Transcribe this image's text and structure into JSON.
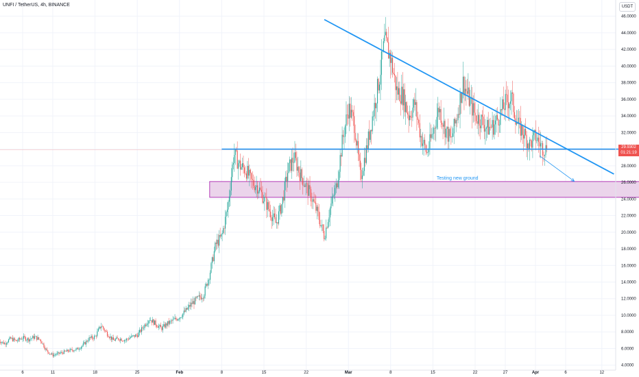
{
  "header": {
    "title": "UNFI / TetherUS, 4h, BINANCE",
    "currency": "USDT"
  },
  "price_tag": {
    "price": "29.9302",
    "countdown": "01:21:19"
  },
  "colors": {
    "up": "#26a69a",
    "down": "#ef5350",
    "trendline": "#2196f3",
    "zone_fill": "#e8cce8",
    "zone_border": "#b33bb8",
    "grid": "#f0f3fa"
  },
  "chart_data": {
    "type": "candlestick",
    "title": "UNFI / TetherUS, 4h, BINANCE",
    "ylim": [
      4,
      47
    ],
    "y_ticks": [
      "4.0000",
      "6.0000",
      "8.0000",
      "10.0000",
      "12.0000",
      "14.0000",
      "16.0000",
      "18.0000",
      "20.0000",
      "22.0000",
      "24.0000",
      "26.0000",
      "28.0000",
      "30.0000",
      "32.0000",
      "34.0000",
      "36.0000",
      "38.0000",
      "40.0000",
      "42.0000",
      "44.0000",
      "46.0000"
    ],
    "x_ticks": [
      {
        "label": "6",
        "date": "2021-01-06"
      },
      {
        "label": "11",
        "date": "2021-01-11"
      },
      {
        "label": "18",
        "date": "2021-01-18"
      },
      {
        "label": "25",
        "date": "2021-01-25"
      },
      {
        "label": "Feb",
        "date": "2021-02-01",
        "bold": true
      },
      {
        "label": "8",
        "date": "2021-02-08"
      },
      {
        "label": "15",
        "date": "2021-02-15"
      },
      {
        "label": "22",
        "date": "2021-02-22"
      },
      {
        "label": "Mar",
        "date": "2021-03-01",
        "bold": true
      },
      {
        "label": "8",
        "date": "2021-03-08"
      },
      {
        "label": "15",
        "date": "2021-03-15"
      },
      {
        "label": "22",
        "date": "2021-03-22"
      },
      {
        "label": "27",
        "date": "2021-03-27"
      },
      {
        "label": "Apr",
        "date": "2021-04-01",
        "bold": true
      },
      {
        "label": "6",
        "date": "2021-04-06"
      },
      {
        "label": "12",
        "date": "2021-04-12"
      }
    ],
    "price_path": [
      [
        "2021-01-02",
        7.0
      ],
      [
        "2021-01-03",
        6.6
      ],
      [
        "2021-01-04",
        7.2
      ],
      [
        "2021-01-05",
        6.9
      ],
      [
        "2021-01-06",
        7.3
      ],
      [
        "2021-01-07",
        7.1
      ],
      [
        "2021-01-08",
        7.4
      ],
      [
        "2021-01-09",
        7.0
      ],
      [
        "2021-01-10",
        5.7
      ],
      [
        "2021-01-11",
        5.2
      ],
      [
        "2021-01-12",
        5.4
      ],
      [
        "2021-01-13",
        5.6
      ],
      [
        "2021-01-14",
        5.8
      ],
      [
        "2021-01-15",
        5.9
      ],
      [
        "2021-01-16",
        6.4
      ],
      [
        "2021-01-17",
        7.2
      ],
      [
        "2021-01-18",
        7.4
      ],
      [
        "2021-01-19",
        8.8
      ],
      [
        "2021-01-20",
        7.8
      ],
      [
        "2021-01-21",
        7.0
      ],
      [
        "2021-01-22",
        7.2
      ],
      [
        "2021-01-23",
        7.0
      ],
      [
        "2021-01-24",
        7.4
      ],
      [
        "2021-01-25",
        7.6
      ],
      [
        "2021-01-26",
        8.6
      ],
      [
        "2021-01-27",
        9.6
      ],
      [
        "2021-01-28",
        9.0
      ],
      [
        "2021-01-29",
        8.4
      ],
      [
        "2021-01-30",
        9.0
      ],
      [
        "2021-01-31",
        9.4
      ],
      [
        "2021-02-01",
        9.8
      ],
      [
        "2021-02-02",
        10.5
      ],
      [
        "2021-02-03",
        11.4
      ],
      [
        "2021-02-04",
        12.0
      ],
      [
        "2021-02-05",
        12.5
      ],
      [
        "2021-02-06",
        15.0
      ],
      [
        "2021-02-07",
        18.5
      ],
      [
        "2021-02-08",
        19.5
      ],
      [
        "2021-02-09",
        23.0
      ],
      [
        "2021-02-10",
        29.5
      ],
      [
        "2021-02-11",
        28.0
      ],
      [
        "2021-02-12",
        27.5
      ],
      [
        "2021-02-13",
        26.0
      ],
      [
        "2021-02-14",
        25.5
      ],
      [
        "2021-02-15",
        24.0
      ],
      [
        "2021-02-16",
        22.5
      ],
      [
        "2021-02-17",
        21.0
      ],
      [
        "2021-02-18",
        23.5
      ],
      [
        "2021-02-19",
        27.5
      ],
      [
        "2021-02-20",
        29.0
      ],
      [
        "2021-02-21",
        27.0
      ],
      [
        "2021-02-22",
        25.5
      ],
      [
        "2021-02-23",
        24.0
      ],
      [
        "2021-02-24",
        22.0
      ],
      [
        "2021-02-25",
        19.5
      ],
      [
        "2021-02-26",
        23.0
      ],
      [
        "2021-02-27",
        25.5
      ],
      [
        "2021-02-28",
        31.0
      ],
      [
        "2021-03-01",
        35.0
      ],
      [
        "2021-03-02",
        33.0
      ],
      [
        "2021-03-03",
        26.5
      ],
      [
        "2021-03-04",
        30.0
      ],
      [
        "2021-03-05",
        34.0
      ],
      [
        "2021-03-06",
        38.0
      ],
      [
        "2021-03-07",
        43.0
      ],
      [
        "2021-03-08",
        41.0
      ],
      [
        "2021-03-09",
        37.0
      ],
      [
        "2021-03-10",
        36.5
      ],
      [
        "2021-03-11",
        34.0
      ],
      [
        "2021-03-12",
        35.5
      ],
      [
        "2021-03-13",
        31.5
      ],
      [
        "2021-03-14",
        29.5
      ],
      [
        "2021-03-15",
        32.0
      ],
      [
        "2021-03-16",
        35.0
      ],
      [
        "2021-03-17",
        32.5
      ],
      [
        "2021-03-18",
        31.0
      ],
      [
        "2021-03-19",
        34.0
      ],
      [
        "2021-03-20",
        38.0
      ],
      [
        "2021-03-21",
        36.0
      ],
      [
        "2021-03-22",
        34.0
      ],
      [
        "2021-03-23",
        33.5
      ],
      [
        "2021-03-24",
        32.5
      ],
      [
        "2021-03-25",
        32.8
      ],
      [
        "2021-03-26",
        34.0
      ],
      [
        "2021-03-27",
        35.5
      ],
      [
        "2021-03-28",
        36.2
      ],
      [
        "2021-03-29",
        33.0
      ],
      [
        "2021-03-30",
        32.0
      ],
      [
        "2021-03-31",
        30.5
      ],
      [
        "2021-04-01",
        31.5
      ],
      [
        "2021-04-02",
        30.3
      ],
      [
        "2021-04-03",
        29.93
      ]
    ],
    "annotations": {
      "horizontal_support": {
        "price": 30.0,
        "from": "2021-02-08",
        "to": "2021-04-22"
      },
      "descending_trendline": {
        "from": [
          "2021-02-25",
          45.6
        ],
        "to": [
          "2021-04-14",
          27.0
        ]
      },
      "zone": {
        "from": "2021-02-06",
        "to": "2021-04-28",
        "top": 26.1,
        "bottom": 24.2,
        "label": "Testing new ground"
      },
      "arrow": {
        "from": [
          "2021-04-01",
          29.2
        ],
        "to": [
          "2021-04-08",
          25.8
        ]
      }
    },
    "last_price": 29.9302
  }
}
